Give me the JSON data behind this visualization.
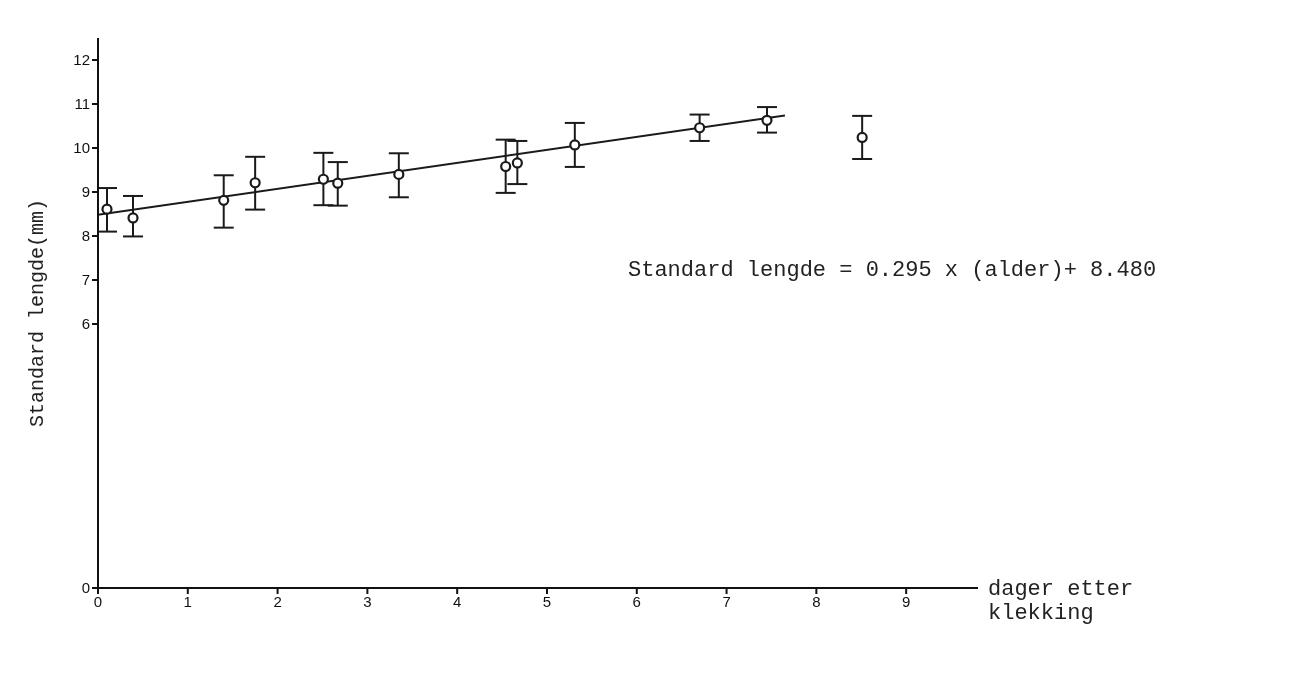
{
  "chart_data": {
    "type": "scatter",
    "xlabel": "dager etter klekking",
    "ylabel": "Standard lengde(mm)",
    "xlim": [
      0,
      9.8
    ],
    "xticks": [
      0,
      1,
      2,
      3,
      4,
      5,
      6,
      7,
      8,
      9
    ],
    "ylim": [
      0,
      12.5
    ],
    "yticks": [
      0,
      6,
      7,
      8,
      9,
      10,
      11,
      12
    ],
    "marker": "circle",
    "annotations": [
      "Standard lengde = 0.295 x (alder)+ 8.480"
    ],
    "series": [
      {
        "color": "#1a1a1a",
        "x": [
          0.1,
          0.39,
          1.4,
          1.75,
          2.51,
          2.67,
          3.35,
          4.54,
          4.67,
          5.31,
          6.7,
          7.45,
          8.51
        ],
        "values": [
          8.61,
          8.41,
          8.81,
          9.21,
          9.29,
          9.2,
          9.4,
          9.58,
          9.66,
          10.07,
          10.46,
          10.63,
          10.24
        ],
        "errors": [
          [
            8.1,
            9.09
          ],
          [
            7.99,
            8.91
          ],
          [
            8.19,
            9.38
          ],
          [
            8.6,
            9.8
          ],
          [
            8.7,
            9.89
          ],
          [
            8.69,
            9.68
          ],
          [
            8.88,
            9.88
          ],
          [
            8.98,
            10.19
          ],
          [
            9.18,
            10.16
          ],
          [
            9.57,
            10.57
          ],
          [
            10.16,
            10.76
          ],
          [
            10.35,
            10.93
          ],
          [
            9.75,
            10.73
          ]
        ]
      },
      {
        "type": "line",
        "color": "#1a1a1a",
        "line_style": "solid",
        "marker": "none",
        "x": [
          0,
          7.65
        ],
        "values": [
          8.48,
          10.74
        ]
      }
    ]
  }
}
